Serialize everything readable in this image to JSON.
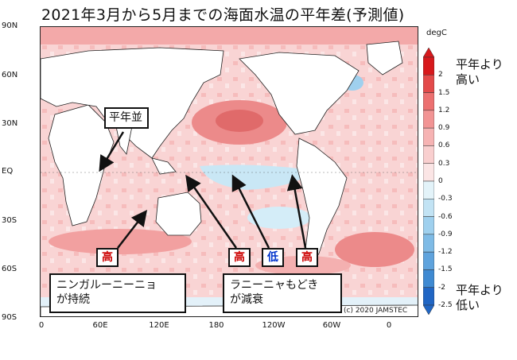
{
  "title": "2021年3月から5月までの海面水温の平年差(予測値)",
  "axes": {
    "lat_ticks": [
      "90N",
      "60N",
      "30N",
      "EQ",
      "30S",
      "60S",
      "90S"
    ],
    "lon_ticks": [
      "0",
      "60E",
      "120E",
      "180",
      "120W",
      "60W",
      "0"
    ]
  },
  "colorbar": {
    "unit": "degC",
    "ticks": [
      "2",
      "1.5",
      "1.2",
      "0.9",
      "0.6",
      "0.3",
      "0",
      "-0.3",
      "-0.6",
      "-0.9",
      "-1.2",
      "-1.5",
      "-2",
      "-2.5"
    ],
    "colors": [
      "#d7191c",
      "#e34a4a",
      "#ec7070",
      "#f29494",
      "#f6b3b3",
      "#f9cfcf",
      "#fbe5e5",
      "#e3f3f9",
      "#c2e3f4",
      "#9fd0ee",
      "#7fbbe6",
      "#5fa3dd",
      "#3f8ad2",
      "#2166c4"
    ],
    "high_label": "平年より\n高い",
    "low_label": "平年より\n低い"
  },
  "annotations": {
    "normal_label": "平年並",
    "high_tag": "高",
    "low_tag": "低",
    "ningaloo_label": "ニンガルーニーニョ\nが持続",
    "lanina_label": "ラニーニャもどき\nが減衰"
  },
  "copyright": "(c) 2020 JAMSTEC",
  "colors": {
    "warm": "#f6b3b3",
    "cool": "#c2e3f4",
    "land": "#ffffff",
    "high_text": "#cc0000",
    "low_text": "#0033cc"
  }
}
